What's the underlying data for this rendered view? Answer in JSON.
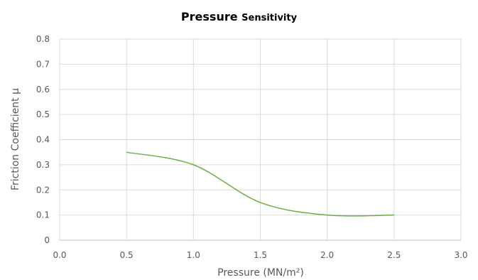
{
  "chart_data": {
    "type": "line",
    "title": "Pressure",
    "subtitle": "Sensitivity",
    "xlabel": "Pressure (MN/m²)",
    "ylabel": "Friction Coefficient μ",
    "xlim": [
      0,
      3.0
    ],
    "ylim": [
      0,
      0.8
    ],
    "xticks": [
      "0.0",
      "0.5",
      "1.0",
      "1.5",
      "2.0",
      "2.5",
      "3.0"
    ],
    "yticks": [
      "0",
      "0.1",
      "0.2",
      "0.3",
      "0.4",
      "0.5",
      "0.6",
      "0.7",
      "0.8"
    ],
    "grid": true,
    "legend": "none",
    "series": [
      {
        "color": "#70AD47",
        "x": [
          0.5,
          1.0,
          1.5,
          2.0,
          2.5
        ],
        "y": [
          0.35,
          0.3,
          0.15,
          0.1,
          0.1
        ]
      }
    ]
  }
}
